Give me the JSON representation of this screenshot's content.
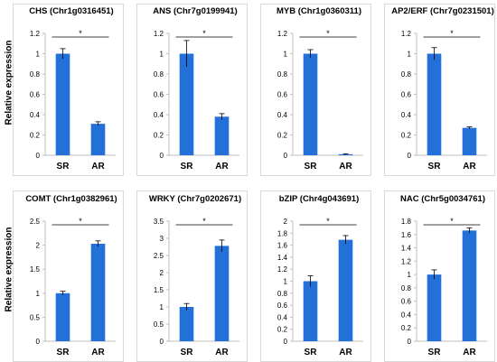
{
  "figure": {
    "ylabel_row1": "Relative expression",
    "ylabel_row2": "Relative expression",
    "colors": {
      "bar": "#2370d9",
      "axis": "#bfbfbf",
      "plot_bg": "#ffffff",
      "frame": "#d9d9d9",
      "text": "#000000"
    },
    "significance_mark": "*"
  },
  "chart_data": [
    {
      "type": "bar",
      "title": "CHS (Chr1g0316451)",
      "categories": [
        "SR",
        "AR"
      ],
      "values": [
        1.0,
        0.31
      ],
      "errors": [
        0.05,
        0.02
      ],
      "ylim": [
        0,
        1.2
      ],
      "yticks": [
        "0",
        "0.2",
        "0.4",
        "0.6",
        "0.8",
        "1",
        "1.2"
      ],
      "tick_values": [
        0,
        0.2,
        0.4,
        0.6,
        0.8,
        1.0,
        1.2
      ],
      "significance": "*",
      "grid": false
    },
    {
      "type": "bar",
      "title": "ANS (Chr7g0199941)",
      "categories": [
        "SR",
        "AR"
      ],
      "values": [
        1.0,
        0.38
      ],
      "errors": [
        0.13,
        0.03
      ],
      "ylim": [
        0,
        1.2
      ],
      "yticks": [
        "0",
        "0.2",
        "0.4",
        "0.6",
        "0.8",
        "1",
        "1.2"
      ],
      "tick_values": [
        0,
        0.2,
        0.4,
        0.6,
        0.8,
        1.0,
        1.2
      ],
      "significance": "*",
      "grid": false
    },
    {
      "type": "bar",
      "title": "MYB (Chr1g0360311)",
      "categories": [
        "SR",
        "AR"
      ],
      "values": [
        1.0,
        0.01
      ],
      "errors": [
        0.04,
        0.005
      ],
      "ylim": [
        0,
        1.2
      ],
      "yticks": [
        "0",
        "0.2",
        "0.4",
        "0.6",
        "0.8",
        "1",
        "1.2"
      ],
      "tick_values": [
        0,
        0.2,
        0.4,
        0.6,
        0.8,
        1.0,
        1.2
      ],
      "significance": "*",
      "grid": false
    },
    {
      "type": "bar",
      "title": "AP2/ERF (Chr7g0231501)",
      "categories": [
        "SR",
        "AR"
      ],
      "values": [
        1.0,
        0.27
      ],
      "errors": [
        0.06,
        0.01
      ],
      "ylim": [
        0,
        1.2
      ],
      "yticks": [
        "0",
        "0.2",
        "0.4",
        "0.6",
        "0.8",
        "1",
        "1.2"
      ],
      "tick_values": [
        0,
        0.2,
        0.4,
        0.6,
        0.8,
        1.0,
        1.2
      ],
      "significance": "*",
      "grid": false
    },
    {
      "type": "bar",
      "title": "COMT (Chr1g0382961)",
      "categories": [
        "SR",
        "AR"
      ],
      "values": [
        1.0,
        2.03
      ],
      "errors": [
        0.04,
        0.06
      ],
      "ylim": [
        0,
        2.5
      ],
      "yticks": [
        "0",
        "0.5",
        "1",
        "1.5",
        "2",
        "2.5"
      ],
      "tick_values": [
        0,
        0.5,
        1.0,
        1.5,
        2.0,
        2.5
      ],
      "significance": "*",
      "grid": false
    },
    {
      "type": "bar",
      "title": "WRKY (Chr7g0202671)",
      "categories": [
        "SR",
        "AR"
      ],
      "values": [
        1.0,
        2.78
      ],
      "errors": [
        0.1,
        0.17
      ],
      "ylim": [
        0,
        3.5
      ],
      "yticks": [
        "0",
        "0.5",
        "1",
        "1.5",
        "2",
        "2.5",
        "3",
        "3.5"
      ],
      "tick_values": [
        0,
        0.5,
        1.0,
        1.5,
        2.0,
        2.5,
        3.0,
        3.5
      ],
      "significance": "*",
      "grid": false
    },
    {
      "type": "bar",
      "title": "bZIP (Chr4g043691)",
      "categories": [
        "SR",
        "AR"
      ],
      "values": [
        1.0,
        1.69
      ],
      "errors": [
        0.09,
        0.07
      ],
      "ylim": [
        0,
        2.0
      ],
      "yticks": [
        "0",
        "0.2",
        "0.4",
        "0.6",
        "0.8",
        "1",
        "1.2",
        "1.4",
        "1.6",
        "1.8",
        "2"
      ],
      "tick_values": [
        0,
        0.2,
        0.4,
        0.6,
        0.8,
        1.0,
        1.2,
        1.4,
        1.6,
        1.8,
        2.0
      ],
      "significance": "*",
      "grid": false
    },
    {
      "type": "bar",
      "title": "NAC (Chr5g0034761)",
      "categories": [
        "SR",
        "AR"
      ],
      "values": [
        1.0,
        1.66
      ],
      "errors": [
        0.07,
        0.04
      ],
      "ylim": [
        0,
        1.8
      ],
      "yticks": [
        "0",
        "0.2",
        "0.4",
        "0.6",
        "0.8",
        "1",
        "1.2",
        "1.4",
        "1.6",
        "1.8"
      ],
      "tick_values": [
        0,
        0.2,
        0.4,
        0.6,
        0.8,
        1.0,
        1.2,
        1.4,
        1.6,
        1.8
      ],
      "significance": "*",
      "grid": false
    }
  ]
}
